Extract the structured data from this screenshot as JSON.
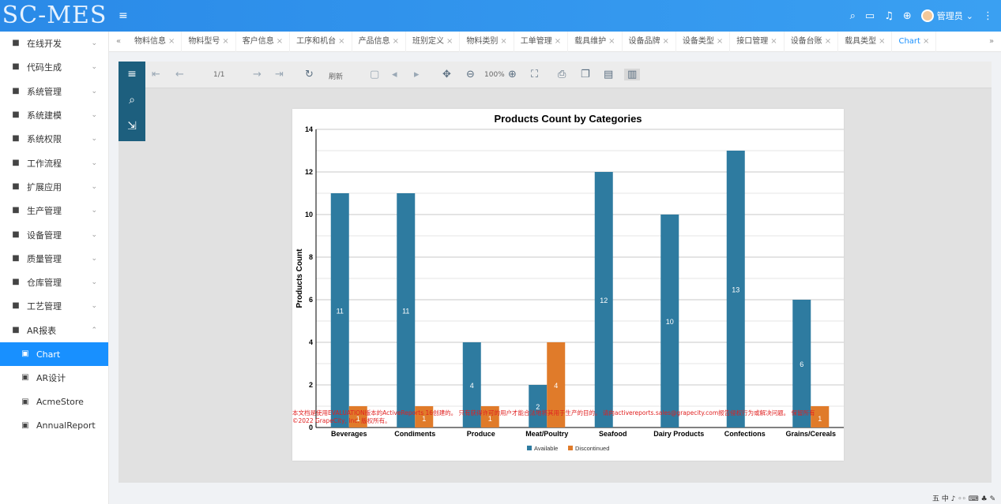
{
  "app": {
    "logo": "SC-MES",
    "menu_icon": "menu-icon"
  },
  "header": {
    "icons": [
      "search-icon",
      "message-icon",
      "bell-icon",
      "globe-icon"
    ],
    "user": "管理员",
    "more": "more-icon"
  },
  "sidebar": {
    "items": [
      {
        "label": "在线开发",
        "icon": "code-icon"
      },
      {
        "label": "代码生成",
        "icon": "codegen-icon"
      },
      {
        "label": "系统管理",
        "icon": "gear-icon"
      },
      {
        "label": "系统建模",
        "icon": "modeling-icon"
      },
      {
        "label": "系统权限",
        "icon": "shield-icon"
      },
      {
        "label": "工作流程",
        "icon": "workflow-icon"
      },
      {
        "label": "扩展应用",
        "icon": "grid-icon"
      },
      {
        "label": "生产管理",
        "icon": "production-icon"
      },
      {
        "label": "设备管理",
        "icon": "device-icon"
      },
      {
        "label": "质量管理",
        "icon": "quality-icon"
      },
      {
        "label": "仓库管理",
        "icon": "warehouse-icon"
      },
      {
        "label": "工艺管理",
        "icon": "process-icon"
      },
      {
        "label": "AR报表",
        "icon": "report-icon"
      }
    ],
    "subitems": [
      {
        "label": "Chart",
        "icon": "chart-icon"
      },
      {
        "label": "AR设计",
        "icon": "design-icon"
      },
      {
        "label": "AcmeStore",
        "icon": "store-icon"
      },
      {
        "label": "AnnualReport",
        "icon": "annual-icon"
      }
    ]
  },
  "tabs": [
    "物料信息",
    "物料型号",
    "客户信息",
    "工序和机台",
    "产品信息",
    "班别定义",
    "物料类别",
    "工单管理",
    "载具维护",
    "设备品牌",
    "设备类型",
    "接口管理",
    "设备台账",
    "载具类型",
    "Chart"
  ],
  "viewer": {
    "page_indicator": "1/1",
    "refresh_label": "刷新",
    "zoom_label": "100%"
  },
  "chart_data": {
    "type": "bar",
    "title": "Products Count by Categories",
    "ylabel": "Products Count",
    "xlabel": "",
    "ylim": [
      0,
      14
    ],
    "yticks": [
      0,
      2,
      4,
      6,
      8,
      10,
      12,
      14
    ],
    "categories": [
      "Beverages",
      "Condiments",
      "Produce",
      "Meat/Poultry",
      "Seafood",
      "Dairy Products",
      "Confections",
      "Grains/Cereals"
    ],
    "series": [
      {
        "name": "Available",
        "color": "#2e7ba0",
        "values": [
          11,
          11,
          4,
          2,
          12,
          10,
          13,
          6
        ]
      },
      {
        "name": "Discontinued",
        "color": "#e07b2a",
        "values": [
          1,
          1,
          1,
          4,
          null,
          null,
          null,
          1
        ]
      }
    ],
    "legend": "bottom",
    "watermark": "本文档是使用EVALUATION版本的ActiveReports 16创建的。 只有获得许可的用户才能合法地将其用于生产的目的。 请向activereports.sales@grapecity.com报告侵权行为或解决问题。 保留所有 ©2022 GrapeCity, Inc. 版权所有。"
  },
  "ime": "五 中 ♪ ◦◦ ⌨ ♣ ✎"
}
